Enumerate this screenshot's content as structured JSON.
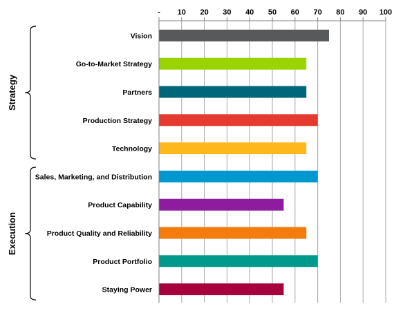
{
  "chart_data": {
    "type": "bar",
    "orientation": "horizontal",
    "title": "",
    "xlabel": "",
    "ylabel": "",
    "xlim": [
      0,
      100
    ],
    "x_tick_values": [
      0,
      10,
      20,
      30,
      40,
      50,
      60,
      70,
      80,
      90,
      100
    ],
    "x_tick_labels": [
      "-",
      "10",
      "20",
      "30",
      "40",
      "50",
      "60",
      "70",
      "80",
      "90",
      "100"
    ],
    "x_axis_position": "top",
    "grid": true,
    "legend": "none",
    "categories": [
      "Vision",
      "Go-to-Market Strategy",
      "Partners",
      "Production Strategy",
      "Technology",
      "Sales, Marketing, and Distribution",
      "Product Capability",
      "Product Quality and Reliability",
      "Product Portfolio",
      "Staying Power"
    ],
    "values": [
      75,
      65,
      65,
      70,
      65,
      70,
      55,
      65,
      70,
      55
    ],
    "colors": [
      "#58595b",
      "#99d400",
      "#00667a",
      "#e53a2f",
      "#ffb81c",
      "#0098ce",
      "#8e1c9e",
      "#f47b0e",
      "#009a8c",
      "#a6003d"
    ],
    "groups": [
      {
        "label": "Strategy",
        "start_index": 0,
        "end_index": 4
      },
      {
        "label": "Execution",
        "start_index": 5,
        "end_index": 9
      }
    ]
  }
}
